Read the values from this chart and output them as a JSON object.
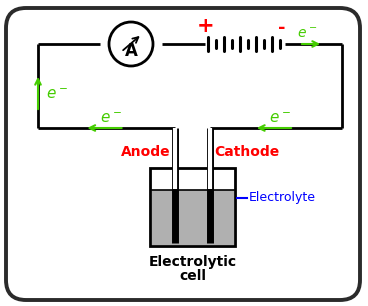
{
  "bg_color": "#ffffff",
  "border_color": "#2b2b2b",
  "circuit_color": "#000000",
  "green_color": "#44cc00",
  "red_color": "#ff0000",
  "blue_color": "#0000ff",
  "gray_color": "#b0b0b0",
  "title1": "Electrolytic",
  "title2": "cell",
  "anode_label": "Anode",
  "cathode_label": "Cathode",
  "electrolyte_label": "Electrolyte",
  "ammeter_label": "A",
  "plus_label": "+",
  "minus_label": "-"
}
